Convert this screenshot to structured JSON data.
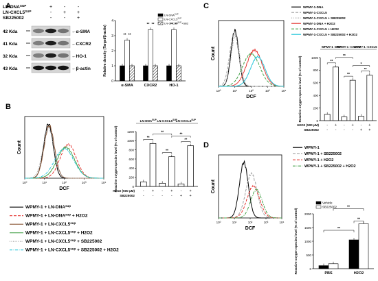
{
  "panel_labels": {
    "a": "A",
    "b": "B",
    "c": "C",
    "d": "D"
  },
  "panel_a": {
    "treatments": [
      {
        "label": "LN-DNA",
        "sup": "SUP",
        "signs": [
          "+",
          "-",
          "-"
        ]
      },
      {
        "label": "LN-CXCL5",
        "sup": "SUP",
        "signs": [
          "-",
          "+",
          "+"
        ]
      },
      {
        "label": "SB225002",
        "sup": "",
        "signs": [
          "-",
          "-",
          "+"
        ]
      }
    ],
    "blots": [
      {
        "kda": "42 Kda",
        "protein": "α-SMA"
      },
      {
        "kda": "41 Kda",
        "protein": "CXCR2"
      },
      {
        "kda": "32 Kda",
        "protein": "HO-1"
      },
      {
        "kda": "43 Kda",
        "protein": "β-actin"
      }
    ],
    "arrow": "←",
    "legend": [
      "LN-DNA^SUP",
      "LN-CXCL5^SUP",
      "LN-CXCL5^SUP+SB225002"
    ]
  },
  "chart_data": [
    {
      "panel": "A",
      "type": "bar",
      "categories": [
        "α-SMA",
        "CXCR2",
        "HO-1"
      ],
      "series": [
        {
          "name": "LN-DNA^SUP",
          "values": [
            1.0,
            1.0,
            1.0
          ]
        },
        {
          "name": "LN-CXCL5^SUP",
          "values": [
            2.7,
            3.4,
            3.4
          ]
        },
        {
          "name": "LN-CXCL5^SUP+SB225002",
          "values": [
            1.0,
            1.0,
            1.0
          ]
        }
      ],
      "ylabel": "Relative density (Target/β-actin)",
      "ylim": [
        0,
        4
      ],
      "yticks": [
        "0",
        "1",
        "2",
        "3",
        "4"
      ],
      "significance": [
        "**",
        "**",
        "**",
        "**",
        "**",
        "**"
      ]
    },
    {
      "panel": "B",
      "type": "bar",
      "group_labels": [
        "LN-DNA^SUP",
        "LN-CXCL5^SUP",
        "LN-CXCL5^SUP"
      ],
      "conditions": {
        "h2o2_label": "H2O2 (500 µM)",
        "sb_label": "SB225002",
        "h2o2": [
          "-",
          "+",
          "-",
          "+",
          "-",
          "+"
        ],
        "sb": [
          "-",
          "-",
          "-",
          "-",
          "+",
          "+"
        ]
      },
      "values": [
        100,
        940,
        70,
        650,
        55,
        890
      ],
      "ylabel": "Reactive oxygen species level (% of control)",
      "ylim": [
        0,
        1200
      ],
      "yticks": [
        "0",
        "200",
        "400",
        "600",
        "800",
        "1000",
        "1200"
      ],
      "significance": [
        "**",
        "**",
        "**",
        "**",
        "**"
      ]
    },
    {
      "panel": "C",
      "type": "bar",
      "group_labels": [
        "WPMY-1 -DNA",
        "WPMY-1 -CXCL5",
        "WPMY-1 -CXCL5"
      ],
      "conditions": {
        "h2o2_label": "H2O2 (500 µM)",
        "sb_label": "SB225002",
        "h2o2": [
          "-",
          "+",
          "-",
          "+",
          "-",
          "+"
        ],
        "sb": [
          "-",
          "-",
          "-",
          "-",
          "+",
          "+"
        ]
      },
      "values": [
        100,
        850,
        60,
        640,
        70,
        720
      ],
      "ylabel": "Reactive oxygen species level (% of control)",
      "ylim": [
        0,
        1000
      ],
      "yticks": [
        "0",
        "200",
        "400",
        "600",
        "800",
        "1000"
      ],
      "significance": [
        "**",
        "**",
        "**",
        "*",
        "**"
      ]
    },
    {
      "panel": "D",
      "type": "bar",
      "categories": [
        "PBS",
        "H2O2"
      ],
      "series": [
        {
          "name": "Vehicle",
          "values": [
            110,
            1050
          ]
        },
        {
          "name": "SB225002",
          "values": [
            180,
            1640
          ]
        }
      ],
      "ylabel": "Reactive oxygen species level (% of control)",
      "ylim": [
        0,
        2000
      ],
      "yticks": [
        "0",
        "500",
        "1000",
        "1500",
        "2000"
      ],
      "significance": [
        "**",
        "**",
        "**"
      ]
    }
  ],
  "histograms": {
    "xlabel": "DCF",
    "ylabel": "Count",
    "x_ticks": [
      "10⁰",
      "10¹",
      "10²",
      "10³",
      "10⁴"
    ],
    "b_legend": [
      {
        "text": "WPMY-1 + LN-DNA^sup",
        "color": "#000000",
        "dash": "solid"
      },
      {
        "text": "WPMY-1 + LN-DNA^sup + H2O2",
        "color": "#e53935",
        "dash": "dash"
      },
      {
        "text": "WPMY-1 + LN-CXCL5^sup",
        "color": "#8d5a3a",
        "dash": "solid"
      },
      {
        "text": "WPMY-1 + LN-CXCL5^sup + H2O2",
        "color": "#43a047",
        "dash": "solid"
      },
      {
        "text": "WPMY-1 + LN-CXCL5^sup + SB225002",
        "color": "#9e9e9e",
        "dash": "dot"
      },
      {
        "text": "WPMY-1 + LN-CXCL5^sup + SB225002 + H2O2",
        "color": "#26c6da",
        "dash": "dashdot"
      }
    ],
    "c_legend": [
      {
        "text": "WPMY-1-DNA",
        "color": "#000000",
        "dash": "solid"
      },
      {
        "text": "WPMY-1-CXCL5",
        "color": "#9e9e9e",
        "dash": "dash"
      },
      {
        "text": "WPMY-1-CXCL5 + SB225002",
        "color": "#9e9e9e",
        "dash": "dot"
      },
      {
        "text": "WPMY-1-DNA + H2O2",
        "color": "#e53935",
        "dash": "solid"
      },
      {
        "text": "WPMY-1-CXCL5 + H2O2",
        "color": "#43a047",
        "dash": "dash"
      },
      {
        "text": "WPMY-1-CXCL5 + SB225002 + H2O2",
        "color": "#26c6da",
        "dash": "solid"
      }
    ],
    "d_legend": [
      {
        "text": "WPMY-1",
        "color": "#000000",
        "dash": "solid"
      },
      {
        "text": "WPMY-1 + SB225002",
        "color": "#9e9e9e",
        "dash": "dash"
      },
      {
        "text": "WPMY-1 + H2O2",
        "color": "#e53935",
        "dash": "dash"
      },
      {
        "text": "WPMY-1 + SB225002 + H2O2",
        "color": "#43a047",
        "dash": "dashdot"
      }
    ]
  }
}
